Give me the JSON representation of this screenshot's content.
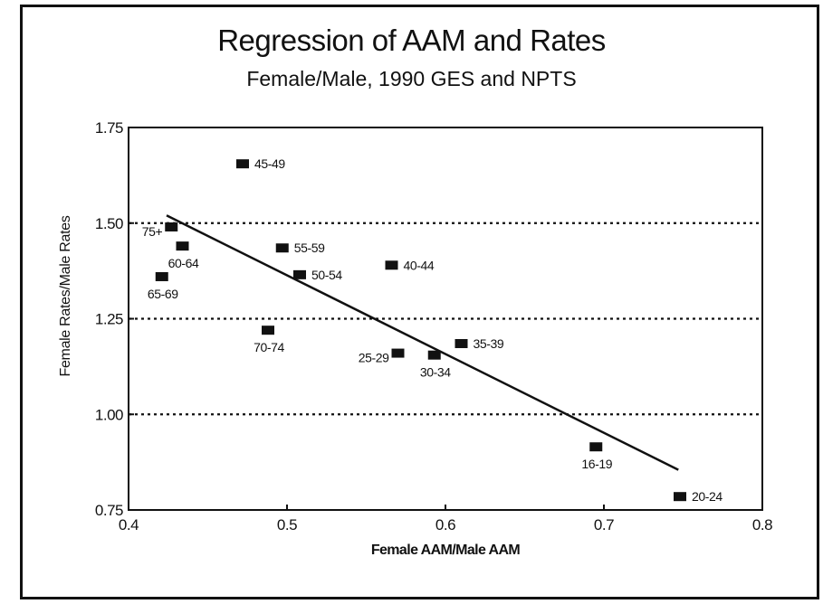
{
  "chart_data": {
    "type": "scatter",
    "title": "Regression of AAM and Rates",
    "subtitle": "Female/Male, 1990 GES and NPTS",
    "xlabel": "Female AAM/Male AAM",
    "ylabel": "Female Rates/Male Rates",
    "xlim": [
      0.4,
      0.8
    ],
    "ylim": [
      0.75,
      1.75
    ],
    "xticks": [
      0.4,
      0.5,
      0.6,
      0.7,
      0.8
    ],
    "xtick_labels": [
      "0.4",
      "0.5",
      "0.6",
      "0.7",
      "0.8"
    ],
    "yticks": [
      0.75,
      1.0,
      1.25,
      1.5,
      1.75
    ],
    "ytick_labels": [
      "0.75",
      "1.00",
      "1.25",
      "1.50",
      "1.75"
    ],
    "gridlines": "horizontal dotted at 1.00, 1.25, 1.50",
    "points": [
      {
        "label": "16-19",
        "x": 0.695,
        "y": 0.915,
        "label_pos": "below"
      },
      {
        "label": "20-24",
        "x": 0.748,
        "y": 0.785,
        "label_pos": "right"
      },
      {
        "label": "25-29",
        "x": 0.57,
        "y": 1.16,
        "label_pos": "left"
      },
      {
        "label": "30-34",
        "x": 0.593,
        "y": 1.155,
        "label_pos": "below"
      },
      {
        "label": "35-39",
        "x": 0.61,
        "y": 1.185,
        "label_pos": "right"
      },
      {
        "label": "40-44",
        "x": 0.566,
        "y": 1.39,
        "label_pos": "right"
      },
      {
        "label": "45-49",
        "x": 0.472,
        "y": 1.655,
        "label_pos": "right"
      },
      {
        "label": "50-54",
        "x": 0.508,
        "y": 1.365,
        "label_pos": "right"
      },
      {
        "label": "55-59",
        "x": 0.497,
        "y": 1.435,
        "label_pos": "right"
      },
      {
        "label": "60-64",
        "x": 0.434,
        "y": 1.44,
        "label_pos": "below"
      },
      {
        "label": "65-69",
        "x": 0.421,
        "y": 1.36,
        "label_pos": "below"
      },
      {
        "label": "70-74",
        "x": 0.488,
        "y": 1.22,
        "label_pos": "below"
      },
      {
        "label": "75+",
        "x": 0.427,
        "y": 1.49,
        "label_pos": "left"
      }
    ],
    "regression_line": {
      "x": [
        0.424,
        0.747
      ],
      "y": [
        1.52,
        0.855
      ]
    }
  }
}
